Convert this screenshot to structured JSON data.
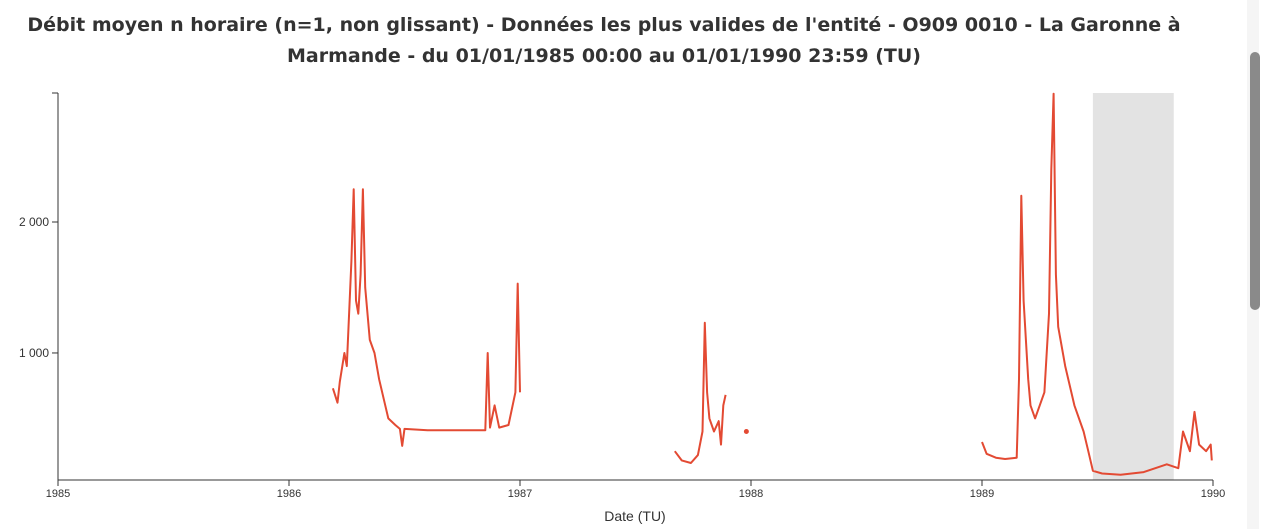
{
  "chart_data": {
    "type": "line",
    "title": "Débit moyen n horaire (n=1, non glissant) - Données les plus valides de l'entité - O909 0010 - La Garonne à Marmande - du 01/01/1985 00:00 au 01/01/1990 23:59 (TU)",
    "x_label": "Date (TU)",
    "color": "#e34a33",
    "shade_color": "#dcdcdc",
    "xlim": [
      1985,
      1990
    ],
    "xticks": [
      1985,
      1986,
      1987,
      1988,
      1989,
      1990
    ],
    "ylim": [
      30,
      2985
    ],
    "yticks": [
      {
        "value": 1000,
        "label": "1 000"
      },
      {
        "value": 2000,
        "label": "2 000"
      }
    ],
    "shaded_ranges": [
      [
        1989.48,
        1989.83
      ]
    ],
    "x": [
      1986.19,
      1986.21,
      1986.22,
      1986.24,
      1986.25,
      1986.27,
      1986.28,
      1986.29,
      1986.3,
      1986.31,
      1986.32,
      1986.33,
      1986.35,
      1986.37,
      1986.39,
      1986.41,
      1986.43,
      1986.46,
      1986.48,
      1986.49,
      1986.5,
      1986.6,
      1986.7,
      1986.85,
      1986.86,
      1986.87,
      1986.89,
      1986.91,
      1986.95,
      1986.98,
      1986.99,
      1987.0,
      1987.3,
      1987.67,
      1987.7,
      1987.74,
      1987.77,
      1987.79,
      1987.8,
      1987.81,
      1987.82,
      1987.84,
      1987.86,
      1987.87,
      1987.88,
      1987.89,
      1987.93,
      1987.98,
      1988.5,
      1989.0,
      1989.02,
      1989.06,
      1989.1,
      1989.15,
      1989.16,
      1989.17,
      1989.18,
      1989.2,
      1989.21,
      1989.23,
      1989.27,
      1989.29,
      1989.3,
      1989.31,
      1989.32,
      1989.33,
      1989.36,
      1989.4,
      1989.44,
      1989.46,
      1989.48,
      1989.52,
      1989.6,
      1989.7,
      1989.75,
      1989.8,
      1989.85,
      1989.87,
      1989.9,
      1989.92,
      1989.94,
      1989.97,
      1989.99,
      1989.995
    ],
    "values": [
      730,
      620,
      780,
      1000,
      900,
      1700,
      2250,
      1400,
      1300,
      1600,
      2250,
      1500,
      1100,
      1000,
      800,
      650,
      500,
      450,
      420,
      290,
      420,
      410,
      410,
      410,
      1000,
      430,
      600,
      430,
      450,
      700,
      1530,
      700,
      null,
      250,
      180,
      160,
      220,
      400,
      1230,
      700,
      500,
      400,
      480,
      300,
      600,
      680,
      null,
      400,
      null,
      320,
      230,
      200,
      190,
      200,
      800,
      2200,
      1400,
      800,
      600,
      500,
      700,
      1300,
      2400,
      2980,
      1600,
      1200,
      900,
      600,
      400,
      250,
      100,
      80,
      70,
      90,
      120,
      150,
      120,
      400,
      250,
      550,
      300,
      250,
      300,
      180
    ]
  }
}
